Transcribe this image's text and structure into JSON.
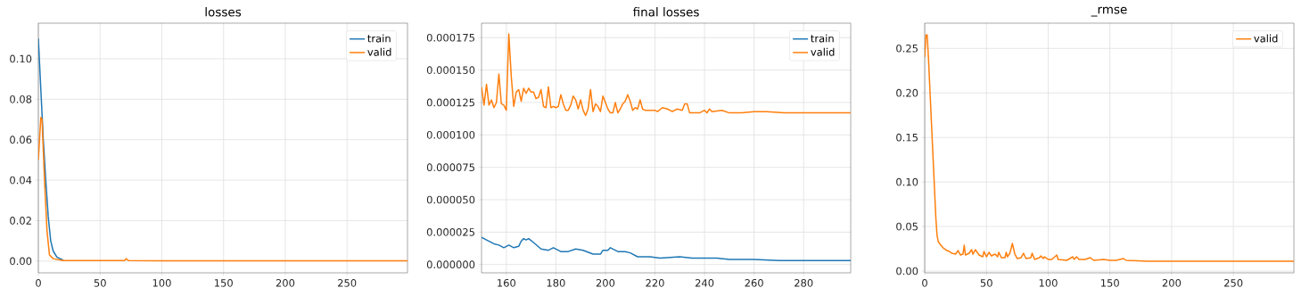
{
  "chart_data": [
    {
      "type": "line",
      "title": "losses",
      "xlim": [
        0,
        299
      ],
      "ylim": [
        -0.0058,
        0.1176
      ],
      "xticks": [
        0,
        50,
        100,
        150,
        200,
        250
      ],
      "yticks": [
        {
          "value": 0,
          "label": "0.00"
        },
        {
          "value": 0.02,
          "label": "0.02"
        },
        {
          "value": 0.04,
          "label": "0.04"
        },
        {
          "value": 0.06,
          "label": "0.06"
        },
        {
          "value": 0.08,
          "label": "0.08"
        },
        {
          "value": 0.1,
          "label": "0.10"
        }
      ],
      "grid": true,
      "legend": "top right",
      "series": [
        {
          "name": "train",
          "color": "#1f77b4",
          "x": [
            0,
            2,
            4,
            6,
            8,
            10,
            12,
            15,
            20
          ],
          "values": [
            0.11,
            0.085,
            0.06,
            0.04,
            0.022,
            0.01,
            0.005,
            0.002,
            0.0005
          ]
        },
        {
          "name": "valid",
          "color": "#ff7f0e",
          "x": [
            0,
            2,
            3,
            5,
            7,
            9,
            12,
            20,
            70,
            71,
            73,
            100,
            150,
            200,
            250,
            299
          ],
          "values": [
            0.05,
            0.071,
            0.07,
            0.04,
            0.015,
            0.003,
            0.0012,
            0.0003,
            0.0003,
            0.0012,
            0.0003,
            0.0001,
            0.0001,
            0.0001,
            0.0001,
            0.0001
          ]
        }
      ]
    },
    {
      "type": "line",
      "title": "final losses",
      "xlim": [
        150,
        299
      ],
      "ylim": [
        -6.4e-06,
        0.0001862
      ],
      "xticks": [
        160,
        180,
        200,
        220,
        240,
        260,
        280
      ],
      "yticks": [
        {
          "value": 0,
          "label": "0.000000"
        },
        {
          "value": 2.5e-05,
          "label": "0.000025"
        },
        {
          "value": 5e-05,
          "label": "0.000050"
        },
        {
          "value": 7.5e-05,
          "label": "0.000075"
        },
        {
          "value": 0.0001,
          "label": "0.000100"
        },
        {
          "value": 0.000125,
          "label": "0.000125"
        },
        {
          "value": 0.00015,
          "label": "0.000150"
        },
        {
          "value": 0.000175,
          "label": "0.000175"
        }
      ],
      "grid": true,
      "legend": "top right",
      "series": [
        {
          "name": "train",
          "color": "#1f77b4",
          "x": [
            150,
            152,
            155,
            157,
            159,
            161,
            163,
            165,
            166,
            167,
            168,
            169,
            171,
            174,
            177,
            179,
            182,
            185,
            188,
            191,
            195,
            198,
            199,
            201,
            202,
            205,
            208,
            210,
            213,
            218,
            222,
            230,
            235,
            245,
            250,
            260,
            270,
            280,
            290,
            295,
            299
          ],
          "values": [
            2.1e-05,
            1.9e-05,
            1.6e-05,
            1.5e-05,
            1.3e-05,
            1.5e-05,
            1.3e-05,
            1.4e-05,
            1.8e-05,
            2e-05,
            1.9e-05,
            2e-05,
            1.7e-05,
            1.2e-05,
            1.1e-05,
            1.3e-05,
            1e-05,
            1e-05,
            1.2e-05,
            1.1e-05,
            8e-06,
            8e-06,
            1.1e-05,
            1.1e-05,
            1.3e-05,
            1e-05,
            1e-05,
            9e-06,
            6e-06,
            6e-06,
            5e-06,
            6e-06,
            5e-06,
            5e-06,
            4e-06,
            4e-06,
            3e-06,
            3e-06,
            3e-06,
            3e-06,
            3e-06
          ]
        },
        {
          "name": "valid",
          "color": "#ff7f0e",
          "x": [
            150,
            151,
            152,
            153,
            154,
            155,
            156,
            157,
            158,
            159,
            160,
            161,
            162,
            163,
            164,
            165,
            166,
            167,
            168,
            169,
            170,
            171,
            172,
            173,
            174,
            175,
            176,
            177,
            178,
            179,
            180,
            181,
            182,
            183,
            184,
            185,
            186,
            187,
            188,
            189,
            190,
            191,
            192,
            193,
            194,
            195,
            196,
            197,
            198,
            199,
            200,
            201,
            202,
            203,
            204,
            205,
            206,
            207,
            208,
            209,
            210,
            211,
            212,
            213,
            214,
            215,
            216,
            220,
            221,
            223,
            225,
            227,
            229,
            231,
            232,
            233,
            234,
            238,
            240,
            241,
            242,
            243,
            247,
            250,
            255,
            260,
            265,
            272,
            280,
            290,
            299
          ],
          "values": [
            0.000137,
            0.000123,
            0.000139,
            0.000123,
            0.000127,
            0.000121,
            0.000125,
            0.000147,
            0.000124,
            0.000123,
            0.000119,
            0.000178,
            0.000145,
            0.000122,
            0.000133,
            0.000135,
            0.000126,
            0.000136,
            0.000132,
            0.000136,
            0.000133,
            0.000133,
            0.000128,
            0.000129,
            0.000135,
            0.000122,
            0.000121,
            0.000137,
            0.000121,
            0.000122,
            0.000121,
            0.000122,
            0.000131,
            0.000124,
            0.000119,
            0.000119,
            0.000123,
            0.00013,
            0.000127,
            0.00012,
            0.000127,
            0.000119,
            0.000115,
            0.00012,
            0.000135,
            0.000118,
            0.000124,
            0.000122,
            0.000118,
            0.00013,
            0.000125,
            0.00012,
            0.000117,
            0.000117,
            0.000125,
            0.000117,
            0.00012,
            0.000124,
            0.000126,
            0.000131,
            0.000126,
            0.000119,
            0.000121,
            0.00012,
            0.000127,
            0.00012,
            0.000119,
            0.000119,
            0.000118,
            0.000121,
            0.00012,
            0.000118,
            0.00012,
            0.000119,
            0.000124,
            0.000124,
            0.000117,
            0.000117,
            0.000119,
            0.000117,
            0.00012,
            0.000118,
            0.000119,
            0.000117,
            0.000117,
            0.000118,
            0.000118,
            0.000117,
            0.000117,
            0.000117,
            0.000117
          ]
        }
      ]
    },
    {
      "type": "line",
      "title": "_rmse",
      "xlim": [
        0,
        299
      ],
      "ylim": [
        -0.002,
        0.2783
      ],
      "xticks": [
        0,
        50,
        100,
        150,
        200,
        250
      ],
      "yticks": [
        {
          "value": 0,
          "label": "0.00"
        },
        {
          "value": 0.05,
          "label": "0.05"
        },
        {
          "value": 0.1,
          "label": "0.10"
        },
        {
          "value": 0.15,
          "label": "0.15"
        },
        {
          "value": 0.2,
          "label": "0.20"
        },
        {
          "value": 0.25,
          "label": "0.25"
        }
      ],
      "grid": true,
      "legend": "top right",
      "series": [
        {
          "name": "valid",
          "color": "#ff7f0e",
          "x": [
            0,
            1,
            2,
            3,
            5,
            7,
            9,
            10,
            11,
            13,
            15,
            18,
            20,
            22,
            25,
            27,
            29,
            31,
            32,
            33,
            36,
            38,
            39,
            41,
            44,
            47,
            48,
            50,
            52,
            54,
            57,
            59,
            60,
            62,
            65,
            66,
            67,
            69,
            71,
            73,
            75,
            78,
            80,
            82,
            86,
            87,
            89,
            93,
            94,
            96,
            97,
            100,
            103,
            107,
            108,
            115,
            120,
            121,
            123,
            125,
            130,
            134,
            137,
            145,
            150,
            155,
            161,
            163,
            180,
            200,
            250,
            299
          ],
          "values": [
            0.24,
            0.265,
            0.265,
            0.24,
            0.18,
            0.12,
            0.06,
            0.04,
            0.033,
            0.029,
            0.026,
            0.023,
            0.022,
            0.02,
            0.019,
            0.023,
            0.018,
            0.019,
            0.029,
            0.018,
            0.02,
            0.024,
            0.019,
            0.024,
            0.018,
            0.016,
            0.022,
            0.016,
            0.021,
            0.017,
            0.019,
            0.016,
            0.021,
            0.015,
            0.015,
            0.021,
            0.016,
            0.02,
            0.031,
            0.019,
            0.014,
            0.015,
            0.02,
            0.014,
            0.015,
            0.02,
            0.013,
            0.015,
            0.017,
            0.014,
            0.016,
            0.013,
            0.013,
            0.018,
            0.013,
            0.012,
            0.016,
            0.013,
            0.016,
            0.013,
            0.013,
            0.015,
            0.012,
            0.013,
            0.012,
            0.012,
            0.014,
            0.012,
            0.011,
            0.011,
            0.011,
            0.011
          ]
        }
      ]
    }
  ]
}
